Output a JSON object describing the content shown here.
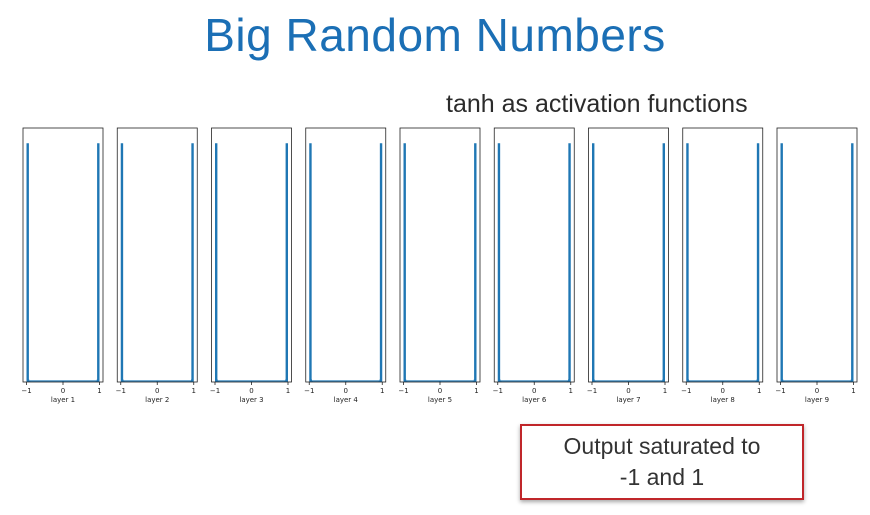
{
  "slide": {
    "title": "Big Random Numbers",
    "subtitle": "tanh as activation functions",
    "callout": "Output saturated to\n-1 and 1"
  },
  "colors": {
    "title": "#1b6fb5",
    "bars": "#1f77b4",
    "callout_border": "#c0262a"
  },
  "chart_data": {
    "type": "bar",
    "xlim": [
      -1,
      1
    ],
    "xticks": [
      "−1",
      "0",
      "1"
    ],
    "grid": false,
    "histograms": [
      {
        "label": "layer 1",
        "bins": [
          -1,
          -0.98,
          -0.95,
          0,
          0.95,
          0.98,
          1
        ],
        "values": [
          0.94,
          0.01,
          0.004,
          0.002,
          0.004,
          0.01,
          0.94
        ]
      },
      {
        "label": "layer 2",
        "bins": [
          -1,
          -0.98,
          -0.95,
          0,
          0.95,
          0.98,
          1
        ],
        "values": [
          0.94,
          0.01,
          0.004,
          0.002,
          0.004,
          0.01,
          0.94
        ]
      },
      {
        "label": "layer 3",
        "bins": [
          -1,
          -0.98,
          -0.95,
          0,
          0.95,
          0.98,
          1
        ],
        "values": [
          0.94,
          0.01,
          0.004,
          0.002,
          0.004,
          0.01,
          0.94
        ]
      },
      {
        "label": "layer 4",
        "bins": [
          -1,
          -0.98,
          -0.95,
          0,
          0.95,
          0.98,
          1
        ],
        "values": [
          0.94,
          0.01,
          0.004,
          0.002,
          0.004,
          0.01,
          0.94
        ]
      },
      {
        "label": "layer 5",
        "bins": [
          -1,
          -0.98,
          -0.95,
          0,
          0.95,
          0.98,
          1
        ],
        "values": [
          0.94,
          0.01,
          0.004,
          0.002,
          0.004,
          0.01,
          0.94
        ]
      },
      {
        "label": "layer 6",
        "bins": [
          -1,
          -0.98,
          -0.95,
          0,
          0.95,
          0.98,
          1
        ],
        "values": [
          0.94,
          0.01,
          0.004,
          0.002,
          0.004,
          0.01,
          0.94
        ]
      },
      {
        "label": "layer 7",
        "bins": [
          -1,
          -0.98,
          -0.95,
          0,
          0.95,
          0.98,
          1
        ],
        "values": [
          0.94,
          0.01,
          0.004,
          0.002,
          0.004,
          0.01,
          0.94
        ]
      },
      {
        "label": "layer 8",
        "bins": [
          -1,
          -0.98,
          -0.95,
          0,
          0.95,
          0.98,
          1
        ],
        "values": [
          0.94,
          0.01,
          0.004,
          0.002,
          0.004,
          0.01,
          0.94
        ]
      },
      {
        "label": "layer 9",
        "bins": [
          -1,
          -0.98,
          -0.95,
          0,
          0.95,
          0.98,
          1
        ],
        "values": [
          0.94,
          0.01,
          0.004,
          0.002,
          0.004,
          0.01,
          0.94
        ]
      }
    ]
  }
}
